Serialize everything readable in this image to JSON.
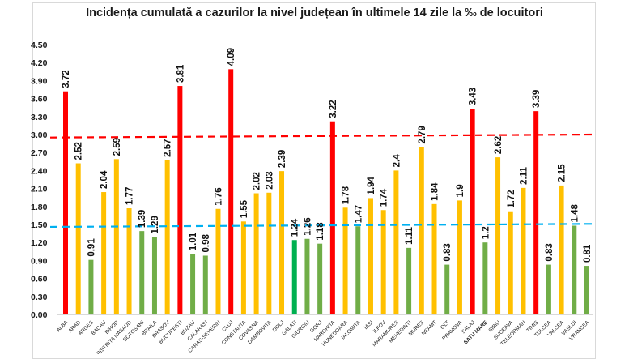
{
  "chart_data": {
    "type": "bar",
    "title": "Incidența cumulată a cazurilor la nivel județean în ultimele 14 zile la ‰ de locuitori",
    "xlabel": "",
    "ylabel": "",
    "ylim": [
      0,
      4.5
    ],
    "yticks": [
      "0.00",
      "0.30",
      "0.60",
      "0.90",
      "1.20",
      "1.50",
      "1.80",
      "2.10",
      "2.40",
      "2.70",
      "3.00",
      "3.30",
      "3.60",
      "3.90",
      "4.20",
      "4.50"
    ],
    "grid": false,
    "legend": "none",
    "categories": [
      "ALBA",
      "ARAD",
      "ARGES",
      "BACAU",
      "BIHOR",
      "BISTRITA NASAUD",
      "BOTOSANI",
      "BRAILA",
      "BRASOV",
      "BUCURESTI",
      "BUZAU",
      "CALARASI",
      "CARAS-SEVERIN",
      "CLUJ",
      "CONSTANTA",
      "COVASNA",
      "DAMBOVITA",
      "DOLJ",
      "GALATI",
      "GIURGIU",
      "GORJ",
      "HARGHITA",
      "HUNEDOARA",
      "IALOMITA",
      "IASI",
      "ILFOV",
      "MARAMURES",
      "MEHEDINTI",
      "MURES",
      "NEAMT",
      "OLT",
      "PRAHOVA",
      "SALAJ",
      "SATU MARE",
      "SIBIU",
      "SUCEAVA",
      "TELEORMAN",
      "TIMIS",
      "TULCEA",
      "VALCEA",
      "VASLUI",
      "VRANCEA"
    ],
    "values": [
      3.72,
      2.52,
      0.91,
      2.04,
      2.59,
      1.77,
      1.39,
      1.29,
      2.57,
      3.81,
      1.01,
      0.98,
      1.76,
      4.09,
      1.55,
      2.02,
      2.03,
      2.39,
      1.24,
      1.26,
      1.18,
      3.22,
      1.78,
      1.47,
      1.94,
      1.74,
      2.4,
      1.11,
      2.79,
      1.84,
      0.83,
      1.9,
      3.43,
      1.2,
      2.62,
      1.72,
      2.11,
      3.39,
      0.83,
      2.15,
      1.48,
      0.81
    ],
    "value_labels": [
      "3.72",
      "2.52",
      "0.91",
      "2.04",
      "2.59",
      "1.77",
      "1.39",
      "1.29",
      "2.57",
      "3.81",
      "1.01",
      "0.98",
      "1.76",
      "4.09",
      "1.55",
      "2.02",
      "2.03",
      "2.39",
      "1.24",
      "1.26",
      "1.18",
      "3.22",
      "1.78",
      "1.47",
      "1.94",
      "1.74",
      "2.4",
      "1.11",
      "2.79",
      "1.84",
      "0.83",
      "1.9",
      "3.43",
      "1.2",
      "2.62",
      "1.72",
      "2.11",
      "3.39",
      "0.83",
      "2.15",
      "1.48",
      "0.81"
    ],
    "bar_colors": {
      "high": "#ff0000",
      "medium": "#ffc000",
      "low": "#70ad47",
      "highlight_low": "#00b050"
    },
    "highlighted_bar": "GALATI",
    "highlighted_category_label": "SATU MARE",
    "highlighted_label_color": "#ff0000",
    "reference_lines": [
      {
        "name": "threshold-3",
        "value_start": 2.95,
        "value_end": 3.0,
        "color": "#ff0000",
        "style": "dashed"
      },
      {
        "name": "threshold-1.5",
        "value_start": 1.46,
        "value_end": 1.51,
        "color": "#00b0f0",
        "style": "dashed"
      }
    ]
  }
}
